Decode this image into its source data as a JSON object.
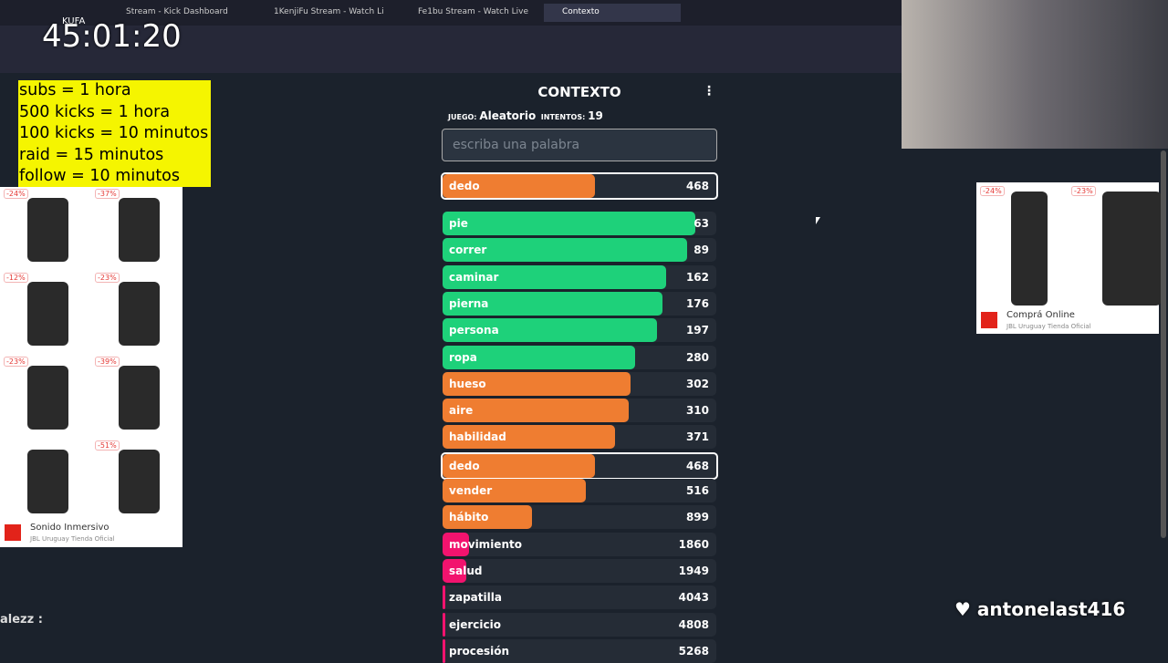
{
  "browser": {
    "tabs": [
      "Stream - Kick Dashboard",
      "1KenjiFu Stream - Watch Li",
      "Fe1bu Stream - Watch Live",
      "Contexto"
    ],
    "overlay_name": "KUFA"
  },
  "timer": "45:01:20",
  "goals": [
    "subs = 1 hora",
    "500 kicks = 1 hora",
    "100 kicks = 10 minutos",
    "raid = 15 minutos",
    "follow = 10 minutos"
  ],
  "game": {
    "title": "CONTEXTO",
    "game_label": "JUEGO:",
    "game_value": "Aleatorio",
    "attempts_label": "INTENTOS:",
    "attempts_value": "19",
    "placeholder": "escriba una palabra",
    "current": {
      "word": "dedo",
      "rank": 468
    },
    "guesses": [
      {
        "word": "pie",
        "rank": 63
      },
      {
        "word": "correr",
        "rank": 89
      },
      {
        "word": "caminar",
        "rank": 162
      },
      {
        "word": "pierna",
        "rank": 176
      },
      {
        "word": "persona",
        "rank": 197
      },
      {
        "word": "ropa",
        "rank": 280
      },
      {
        "word": "hueso",
        "rank": 302
      },
      {
        "word": "aire",
        "rank": 310
      },
      {
        "word": "habilidad",
        "rank": 371
      },
      {
        "word": "dedo",
        "rank": 468
      },
      {
        "word": "vender",
        "rank": 516
      },
      {
        "word": "hábito",
        "rank": 899
      },
      {
        "word": "movimiento",
        "rank": 1860
      },
      {
        "word": "salud",
        "rank": 1949
      },
      {
        "word": "zapatilla",
        "rank": 4043
      },
      {
        "word": "ejercicio",
        "rank": 4808
      },
      {
        "word": "procesión",
        "rank": 5268
      }
    ]
  },
  "ad_left": {
    "badges": [
      "-24%",
      "-37%",
      "-12%",
      "-23%",
      "-23%",
      "-39%",
      "-51%"
    ],
    "headline": "Sonido Inmersivo",
    "advertiser": "JBL Uruguay Tienda Oficial"
  },
  "ad_right": {
    "badges": [
      "-24%",
      "-23%"
    ],
    "headline": "Comprá Online",
    "advertiser": "JBL Uruguay Tienda Oficial"
  },
  "chat": {
    "user": "alezz :"
  },
  "alert": {
    "follower": "antonelast416"
  }
}
